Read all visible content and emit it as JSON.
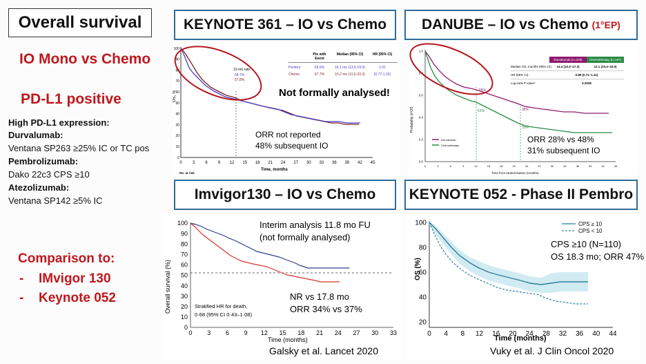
{
  "left": {
    "title": "Overall survival",
    "subtitle1": "IO Mono vs Chemo",
    "subtitle2": "PD-L1 positive",
    "high_expr": "High PD-L1 expression:",
    "drugs": [
      {
        "name": "Durvalumab:",
        "assay": "Ventana SP263 ≥25% IC or TC pos"
      },
      {
        "name": "Pembrolizumab:",
        "assay": "Dako 22c3 CPS ≥10"
      },
      {
        "name": "Atezolizumab:",
        "assay": "Ventana SP142 ≥5% IC"
      }
    ],
    "comparison_title": "Comparison to:",
    "comparison_items": [
      "IMvigor 130",
      "Keynote 052"
    ],
    "dash": "-"
  },
  "panels": {
    "keynote361": {
      "title": "KEYNOTE 361 – IO vs Chemo",
      "ylabel": "OS, %",
      "xlabel": "Time, months",
      "at_risk": "No. at risk",
      "rate_label": "12-mo rate",
      "rate_pembro": "58.7%",
      "rate_chemo": "57.8%",
      "table_headers": [
        "Pts with Event",
        "Median (95% CI)",
        "HR (95% CI)"
      ],
      "table_rows": [
        {
          "arm": "Pembro",
          "events": "65.6%",
          "median": "16.1 mo (13.6-19.9)"
        },
        {
          "arm": "Chemo",
          "events": "67.7%",
          "median": "15.2 mo (11.6-23.3)"
        }
      ],
      "hr": "1.01",
      "hr_ci": "(0.77-1.32)",
      "note": "Not formally analysed!",
      "orr1": "ORR not reported",
      "orr2": "48% subsequent IO",
      "x_ticks": [
        "0",
        "3",
        "6",
        "9",
        "12",
        "15",
        "18",
        "21",
        "24",
        "27",
        "30",
        "33",
        "36",
        "39",
        "42",
        "45"
      ],
      "y_ticks": [
        "100",
        "90",
        "80",
        "70",
        "60",
        "50",
        "40",
        "30",
        "20",
        "10",
        "0"
      ],
      "colors": {
        "pembro": "#4a3cc7",
        "chemo": "#7a1f1f"
      }
    },
    "danube": {
      "title_main": "DANUBE – IO vs Chemo",
      "title_ep": "(1°EP)",
      "ylabel": "Probability of OS",
      "xlabel": "Time from randomisation (months)",
      "col_headers": [
        "Durvalumab (n=209)",
        "Chemotherapy (n=187)"
      ],
      "rows": [
        {
          "label": "Median OS, months (95% CI)",
          "durva": "14.4 (10.4–17.3)",
          "chemo": "12.1 (10.4–15.0)"
        },
        {
          "label": "HR (95% CI)",
          "value": "0.89 (0.71–1.11)"
        },
        {
          "label": "Log-rank P value*",
          "value": "0.3039"
        }
      ],
      "pct_durva_12": "55%",
      "pct_chemo_12": "51%",
      "pct_durva_24": "36%",
      "pct_chemo_24": "29%",
      "legend": [
        "Durvalumab",
        "Chemotherapy"
      ],
      "orr1": "ORR 28% vs 48%",
      "orr2": "31% subsequent IO",
      "x_ticks": [
        "0",
        "3",
        "6",
        "9",
        "12",
        "15",
        "18",
        "21",
        "24",
        "27",
        "30",
        "33",
        "36",
        "39",
        "42",
        "45"
      ],
      "y_ticks": [
        "1.0",
        "0.8",
        "0.6",
        "0.4",
        "0.2",
        "0.0"
      ],
      "colors": {
        "durva": "#8e1a6e",
        "chemo": "#2a8a45"
      }
    },
    "imvigor130": {
      "title": "Imvigor130 – IO vs Chemo",
      "ylabel": "Overall survival (%)",
      "xlabel": "Time (months)",
      "interim1": "Interim analysis 11.8 mo FU",
      "interim2": "(not formally analysed)",
      "hr1": "Stratified HR for death,",
      "hr2": "0·68 (95% CI 0·43–1·08)",
      "nr": "NR vs 17.8 mo",
      "orr": "ORR 34% vs 37%",
      "citation": "Galsky et al. Lancet 2020",
      "x_ticks": [
        "0",
        "3",
        "6",
        "9",
        "12",
        "15",
        "18",
        "21",
        "24",
        "27",
        "30",
        "33"
      ],
      "y_ticks": [
        "100",
        "90",
        "80",
        "70",
        "60",
        "50",
        "40",
        "30",
        "20",
        "10",
        "0"
      ],
      "colors": {
        "io": "#2b3f8f",
        "chemo": "#d6332b"
      }
    },
    "keynote052": {
      "title": "KEYNOTE 052 - Phase II Pembro",
      "ylabel": "OS (%)",
      "xlabel": "Time (months)",
      "legend": [
        "CPS ≥ 10",
        "CPS < 10"
      ],
      "cps1": "CPS ≥10 (N=110)",
      "cps2": "OS 18.3 mo; ORR 47%",
      "citation": "Vuky et al. J Clin Oncol 2020",
      "x_ticks": [
        "0",
        "4",
        "8",
        "12",
        "16",
        "20",
        "24",
        "28",
        "32",
        "36",
        "40",
        "44"
      ],
      "y_ticks": [
        "100",
        "80",
        "60",
        "40",
        "20"
      ],
      "colors": {
        "line": "#2d7e9c",
        "band": "#c5e6ef"
      }
    }
  }
}
